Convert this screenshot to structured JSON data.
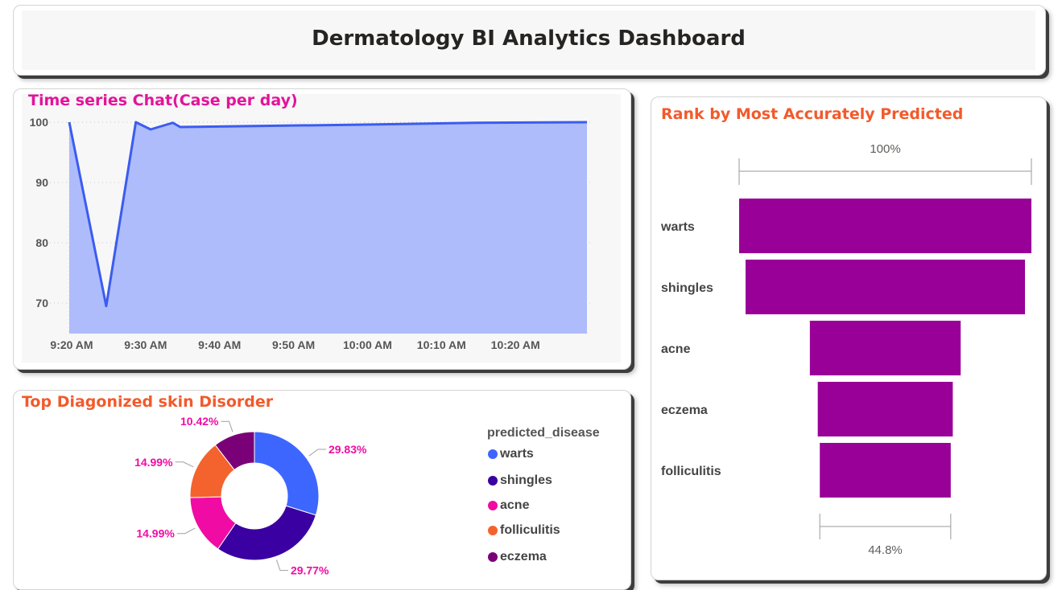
{
  "dashboard": {
    "title": "Dermatology BI Analytics Dashboard"
  },
  "colors": {
    "area_fill": "#aebcfb",
    "area_line": "#3b5cf0",
    "title_magenta": "#e3139b",
    "title_orange": "#f25a2b",
    "funnel_bar": "#980097",
    "warts": "#3d66ff",
    "shingles": "#3a00a1",
    "acne": "#f00ca4",
    "folliculitis": "#f4632d",
    "eczema": "#7a0078"
  },
  "chart_data": [
    {
      "id": "time_series",
      "type": "area",
      "title": "Time series Chat(Case per day)",
      "xlabel": "",
      "ylabel": "",
      "x_tick_labels": [
        "9:20 AM",
        "9:30 AM",
        "9:40 AM",
        "9:50 AM",
        "10:00 AM",
        "10:10 AM",
        "10:20 AM"
      ],
      "x_start": "9:20 AM",
      "x_end": "10:30 AM",
      "y_ticks": [
        70,
        80,
        90,
        100
      ],
      "ylim": [
        65,
        102
      ],
      "x": [
        "9:20 AM",
        "9:25 AM",
        "9:29 AM",
        "9:31 AM",
        "9:34 AM",
        "9:35 AM",
        "10:00 AM",
        "10:15 AM",
        "10:30 AM"
      ],
      "values": [
        100,
        69.5,
        100,
        98.8,
        99.9,
        99.2,
        99.6,
        99.9,
        100
      ],
      "grid": true
    },
    {
      "id": "top_disorders",
      "type": "pie",
      "title": "Top Diagonized skin Disorder",
      "legend_title": "predicted_disease",
      "legend_position": "right",
      "slices": [
        {
          "label": "warts",
          "value": 29.83,
          "display": "29.83%"
        },
        {
          "label": "shingles",
          "value": 29.77,
          "display": "29.77%"
        },
        {
          "label": "acne",
          "value": 14.99,
          "display": "14.99%"
        },
        {
          "label": "folliculitis",
          "value": 14.99,
          "display": "14.99%"
        },
        {
          "label": "eczema",
          "value": 10.42,
          "display": "10.42%"
        }
      ]
    },
    {
      "id": "funnel",
      "type": "bar",
      "title": "Rank by Most Accurately Predicted",
      "categories": [
        "warts",
        "shingles",
        "acne",
        "eczema",
        "folliculitis"
      ],
      "values": [
        100,
        95.6,
        51.6,
        46.2,
        44.8
      ],
      "top_label": "100%",
      "bottom_label": "44.8%"
    }
  ]
}
